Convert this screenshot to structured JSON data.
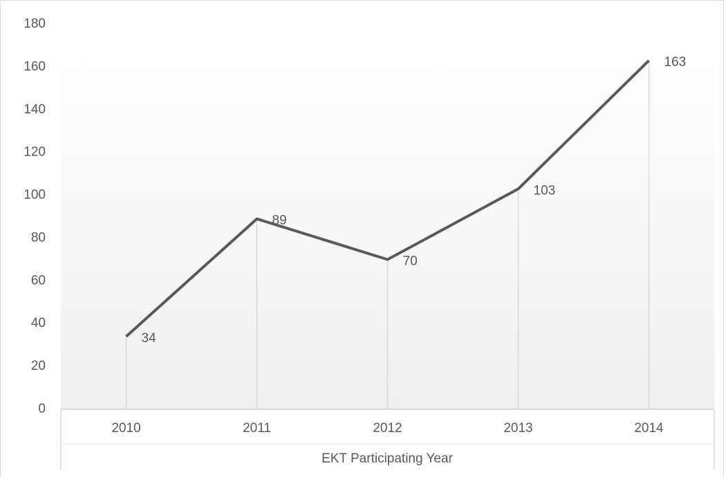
{
  "chart_data": {
    "type": "line",
    "x_label": "EKT Participating Year",
    "categories": [
      "2010",
      "2011",
      "2012",
      "2013",
      "2014"
    ],
    "values": [
      34,
      89,
      70,
      103,
      163
    ],
    "color": "#595959",
    "data_labels": true,
    "drop_lines": true,
    "ylim": [
      0,
      180
    ],
    "yticks": [
      0,
      20,
      40,
      60,
      80,
      100,
      120,
      140,
      160,
      180
    ]
  }
}
